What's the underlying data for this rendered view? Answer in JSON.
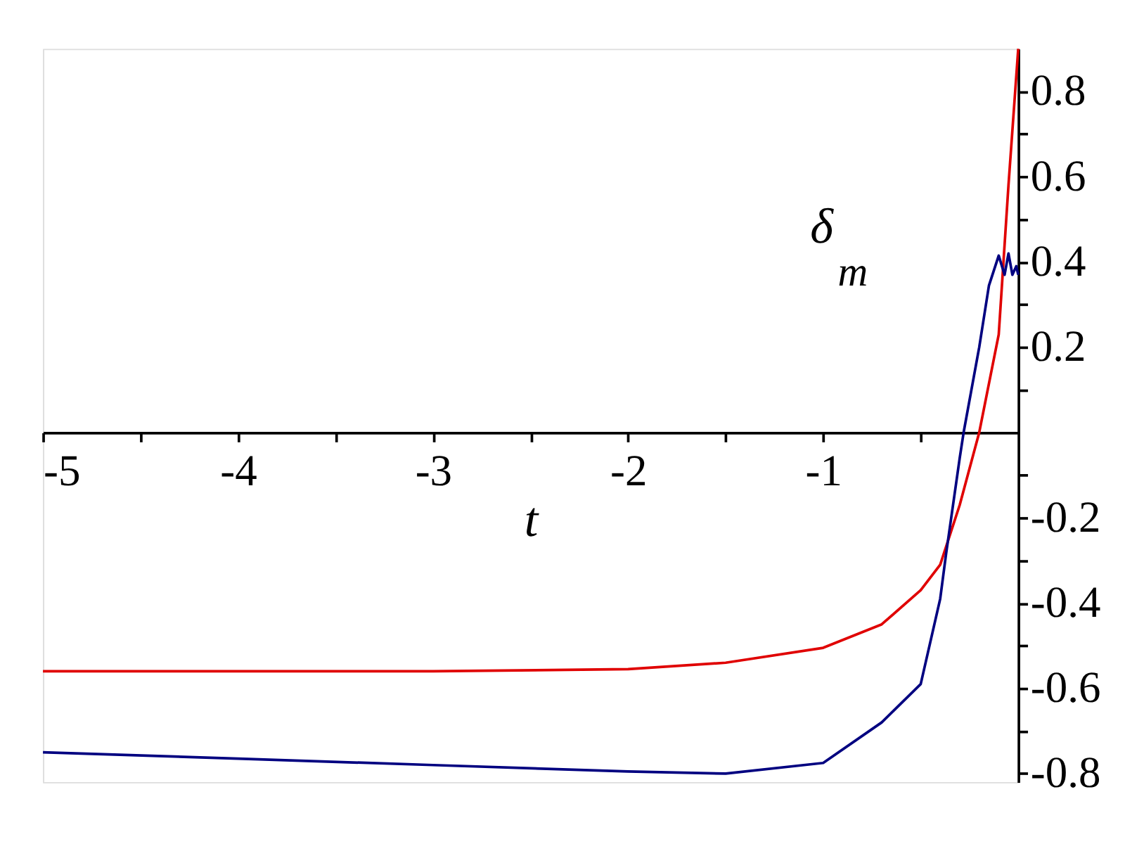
{
  "chart_data": {
    "type": "line",
    "xlabel": "t",
    "ylabel": "δ$_{m}$",
    "xlim": [
      -5,
      0
    ],
    "ylim": [
      -0.82,
      0.9
    ],
    "xticks": [
      -5,
      {
        "value": -4.5,
        "label": null
      },
      -4,
      {
        "value": -3.5,
        "label": null
      },
      -3,
      {
        "value": -2.5,
        "label": null
      },
      -2,
      {
        "value": -1.5,
        "label": null
      },
      -1,
      {
        "value": -0.5,
        "label": null
      }
    ],
    "yticks": [
      -0.8,
      {
        "value": -0.7,
        "label": null
      },
      -0.6,
      {
        "value": -0.5,
        "label": null
      },
      -0.4,
      {
        "value": -0.3,
        "label": null
      },
      -0.2,
      {
        "value": -0.1,
        "label": null
      },
      {
        "value": 0.1,
        "label": null
      },
      0.2,
      {
        "value": 0.3,
        "label": null
      },
      0.4,
      {
        "value": 0.5,
        "label": null
      },
      0.6,
      {
        "value": 0.7,
        "label": null
      },
      0.8
    ],
    "grid": false,
    "legend": false,
    "line_style": "solid",
    "marker": "none",
    "series": [
      {
        "color": "#e00000",
        "x": [
          -5,
          -4,
          -3,
          -2,
          -1.5,
          -1,
          -0.7,
          -0.5,
          -0.4,
          -0.3,
          -0.2,
          -0.1,
          -0.05,
          0
        ],
        "values": [
          -0.56,
          -0.56,
          -0.56,
          -0.555,
          -0.54,
          -0.505,
          -0.45,
          -0.37,
          -0.31,
          -0.17,
          0.0,
          0.23,
          0.58,
          0.9
        ]
      },
      {
        "color": "#000080",
        "x": [
          -5,
          -4,
          -3,
          -2,
          -1.5,
          -1,
          -0.7,
          -0.5,
          -0.4,
          -0.37,
          -0.3,
          -0.28,
          -0.2,
          -0.15,
          -0.1,
          -0.07,
          -0.05,
          -0.03,
          -0.01,
          0
        ],
        "values": [
          -0.75,
          -0.765,
          -0.78,
          -0.795,
          -0.8,
          -0.775,
          -0.68,
          -0.59,
          -0.39,
          -0.285,
          -0.06,
          0.0,
          0.2,
          0.345,
          0.415,
          0.37,
          0.42,
          0.37,
          0.39,
          0.37
        ]
      }
    ]
  }
}
